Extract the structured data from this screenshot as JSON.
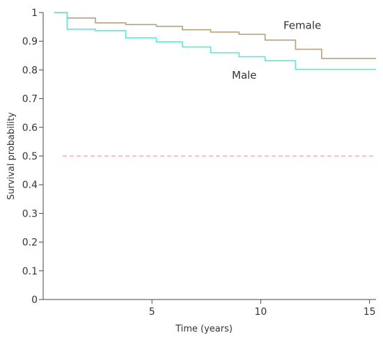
{
  "chart_data": {
    "type": "line",
    "step": true,
    "xlabel": "Time (years)",
    "ylabel": "Survival probability",
    "xlim": [
      0,
      15.3
    ],
    "ylim": [
      0,
      1
    ],
    "x_ticks": [
      5,
      10,
      15
    ],
    "y_ticks": [
      0,
      0.1,
      0.2,
      0.3,
      0.4,
      0.5,
      0.6,
      0.7,
      0.8,
      0.9,
      1
    ],
    "y_tick_labels": [
      "0",
      "0.1",
      "0.2",
      "0.3",
      "0.4",
      "0.5",
      "0.6",
      "0.7",
      "0.8",
      "0.9",
      "1"
    ],
    "reference_line": {
      "y": 0.5,
      "style": "dashed",
      "color": "#f08080"
    },
    "grid": false,
    "series": [
      {
        "name": "Female",
        "color": "#b5a27a",
        "x": [
          0.5,
          1.1,
          2.4,
          3.8,
          5.2,
          6.4,
          7.7,
          9.0,
          10.2,
          11.6,
          12.8,
          15.3
        ],
        "y": [
          1.0,
          0.981,
          0.964,
          0.958,
          0.952,
          0.94,
          0.932,
          0.924,
          0.904,
          0.872,
          0.84,
          0.84
        ]
      },
      {
        "name": "Male",
        "color": "#5ee8d4",
        "x": [
          0.5,
          1.1,
          2.4,
          3.8,
          5.2,
          6.4,
          7.7,
          9.0,
          10.2,
          11.6,
          15.3
        ],
        "y": [
          1.0,
          0.942,
          0.937,
          0.912,
          0.898,
          0.88,
          0.86,
          0.846,
          0.832,
          0.802,
          0.802
        ]
      }
    ]
  }
}
